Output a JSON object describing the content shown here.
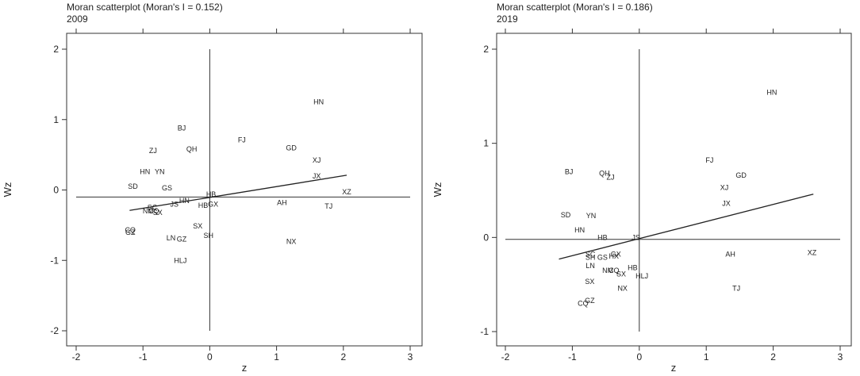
{
  "chart_data": [
    {
      "type": "scatter",
      "title": "Moran scatterplot (Moran's I = 0.152)",
      "subtitle": "2009",
      "xlabel": "z",
      "ylabel": "Wz",
      "xlim": [
        -2,
        3
      ],
      "ylim": [
        -2,
        2
      ],
      "xticks": [
        -2,
        -1,
        0,
        1,
        2,
        3
      ],
      "yticks": [
        -2,
        -1,
        0,
        1,
        2
      ],
      "fit_line": {
        "x": [
          -1.2,
          2.05
        ],
        "y": [
          -0.29,
          0.21
        ]
      },
      "points": [
        {
          "label": "HN",
          "x": 1.63,
          "y": 1.25
        },
        {
          "label": "BJ",
          "x": -0.42,
          "y": 0.88
        },
        {
          "label": "FJ",
          "x": 0.48,
          "y": 0.71
        },
        {
          "label": "QH",
          "x": -0.27,
          "y": 0.58
        },
        {
          "label": "GD",
          "x": 1.22,
          "y": 0.6
        },
        {
          "label": "ZJ",
          "x": -0.85,
          "y": 0.56
        },
        {
          "label": "XJ",
          "x": 1.6,
          "y": 0.42
        },
        {
          "label": "HN",
          "x": -0.97,
          "y": 0.26
        },
        {
          "label": "YN",
          "x": -0.75,
          "y": 0.26
        },
        {
          "label": "JX",
          "x": 1.6,
          "y": 0.2
        },
        {
          "label": "SD",
          "x": -1.15,
          "y": 0.05
        },
        {
          "label": "GS",
          "x": -0.64,
          "y": 0.03
        },
        {
          "label": "XZ",
          "x": 2.05,
          "y": -0.03
        },
        {
          "label": "HB",
          "x": 0.02,
          "y": -0.06
        },
        {
          "label": "HN",
          "x": -0.38,
          "y": -0.15
        },
        {
          "label": "AH",
          "x": 1.08,
          "y": -0.18
        },
        {
          "label": "JS",
          "x": -0.53,
          "y": -0.2
        },
        {
          "label": "HB",
          "x": -0.1,
          "y": -0.22
        },
        {
          "label": "GX",
          "x": 0.05,
          "y": -0.2
        },
        {
          "label": "TJ",
          "x": 1.78,
          "y": -0.23
        },
        {
          "label": "SC",
          "x": -0.86,
          "y": -0.25
        },
        {
          "label": "NM",
          "x": -0.92,
          "y": -0.3
        },
        {
          "label": "CQ",
          "x": -0.84,
          "y": -0.3
        },
        {
          "label": "SX",
          "x": -0.78,
          "y": -0.32
        },
        {
          "label": "SX",
          "x": -0.18,
          "y": -0.51
        },
        {
          "label": "CQ",
          "x": -1.19,
          "y": -0.57
        },
        {
          "label": "GZ",
          "x": -1.19,
          "y": -0.6
        },
        {
          "label": "SH",
          "x": -0.02,
          "y": -0.65
        },
        {
          "label": "LN",
          "x": -0.58,
          "y": -0.68
        },
        {
          "label": "GZ",
          "x": -0.42,
          "y": -0.7
        },
        {
          "label": "NX",
          "x": 1.22,
          "y": -0.73
        },
        {
          "label": "HLJ",
          "x": -0.44,
          "y": -1.0
        }
      ]
    },
    {
      "type": "scatter",
      "title": "Moran scatterplot (Moran's I = 0.186)",
      "subtitle": "2019",
      "xlabel": "z",
      "ylabel": "Wz",
      "xlim": [
        -2,
        3
      ],
      "ylim": [
        -1,
        2
      ],
      "xticks": [
        -2,
        -1,
        0,
        1,
        2,
        3
      ],
      "yticks": [
        -1,
        0,
        1,
        2
      ],
      "fit_line": {
        "x": [
          -1.2,
          2.6
        ],
        "y": [
          -0.23,
          0.46
        ]
      },
      "points": [
        {
          "label": "HN",
          "x": 1.98,
          "y": 1.54
        },
        {
          "label": "FJ",
          "x": 1.05,
          "y": 0.82
        },
        {
          "label": "BJ",
          "x": -1.05,
          "y": 0.7
        },
        {
          "label": "QH",
          "x": -0.52,
          "y": 0.68
        },
        {
          "label": "ZJ",
          "x": -0.43,
          "y": 0.64
        },
        {
          "label": "GD",
          "x": 1.52,
          "y": 0.66
        },
        {
          "label": "XJ",
          "x": 1.27,
          "y": 0.53
        },
        {
          "label": "JX",
          "x": 1.3,
          "y": 0.36
        },
        {
          "label": "SD",
          "x": -1.1,
          "y": 0.24
        },
        {
          "label": "YN",
          "x": -0.72,
          "y": 0.23
        },
        {
          "label": "HN",
          "x": -0.89,
          "y": 0.08
        },
        {
          "label": "HB",
          "x": -0.55,
          "y": 0.0
        },
        {
          "label": "JS",
          "x": -0.05,
          "y": 0.0
        },
        {
          "label": "AH",
          "x": 1.36,
          "y": -0.18
        },
        {
          "label": "XZ",
          "x": 2.58,
          "y": -0.16
        },
        {
          "label": "SC",
          "x": -0.73,
          "y": -0.18
        },
        {
          "label": "SH",
          "x": -0.73,
          "y": -0.21
        },
        {
          "label": "GS",
          "x": -0.55,
          "y": -0.21
        },
        {
          "label": "HX",
          "x": -0.38,
          "y": -0.2
        },
        {
          "label": "GX",
          "x": -0.35,
          "y": -0.18
        },
        {
          "label": "LN",
          "x": -0.73,
          "y": -0.3
        },
        {
          "label": "HB",
          "x": -0.1,
          "y": -0.32
        },
        {
          "label": "NM",
          "x": -0.47,
          "y": -0.35
        },
        {
          "label": "CQ",
          "x": -0.38,
          "y": -0.35
        },
        {
          "label": "SX",
          "x": -0.27,
          "y": -0.39
        },
        {
          "label": "HLJ",
          "x": 0.04,
          "y": -0.41
        },
        {
          "label": "SX",
          "x": -0.74,
          "y": -0.47
        },
        {
          "label": "NX",
          "x": -0.25,
          "y": -0.54
        },
        {
          "label": "TJ",
          "x": 1.45,
          "y": -0.54
        },
        {
          "label": "GZ",
          "x": -0.74,
          "y": -0.67
        },
        {
          "label": "CQ",
          "x": -0.84,
          "y": -0.7
        }
      ]
    }
  ]
}
